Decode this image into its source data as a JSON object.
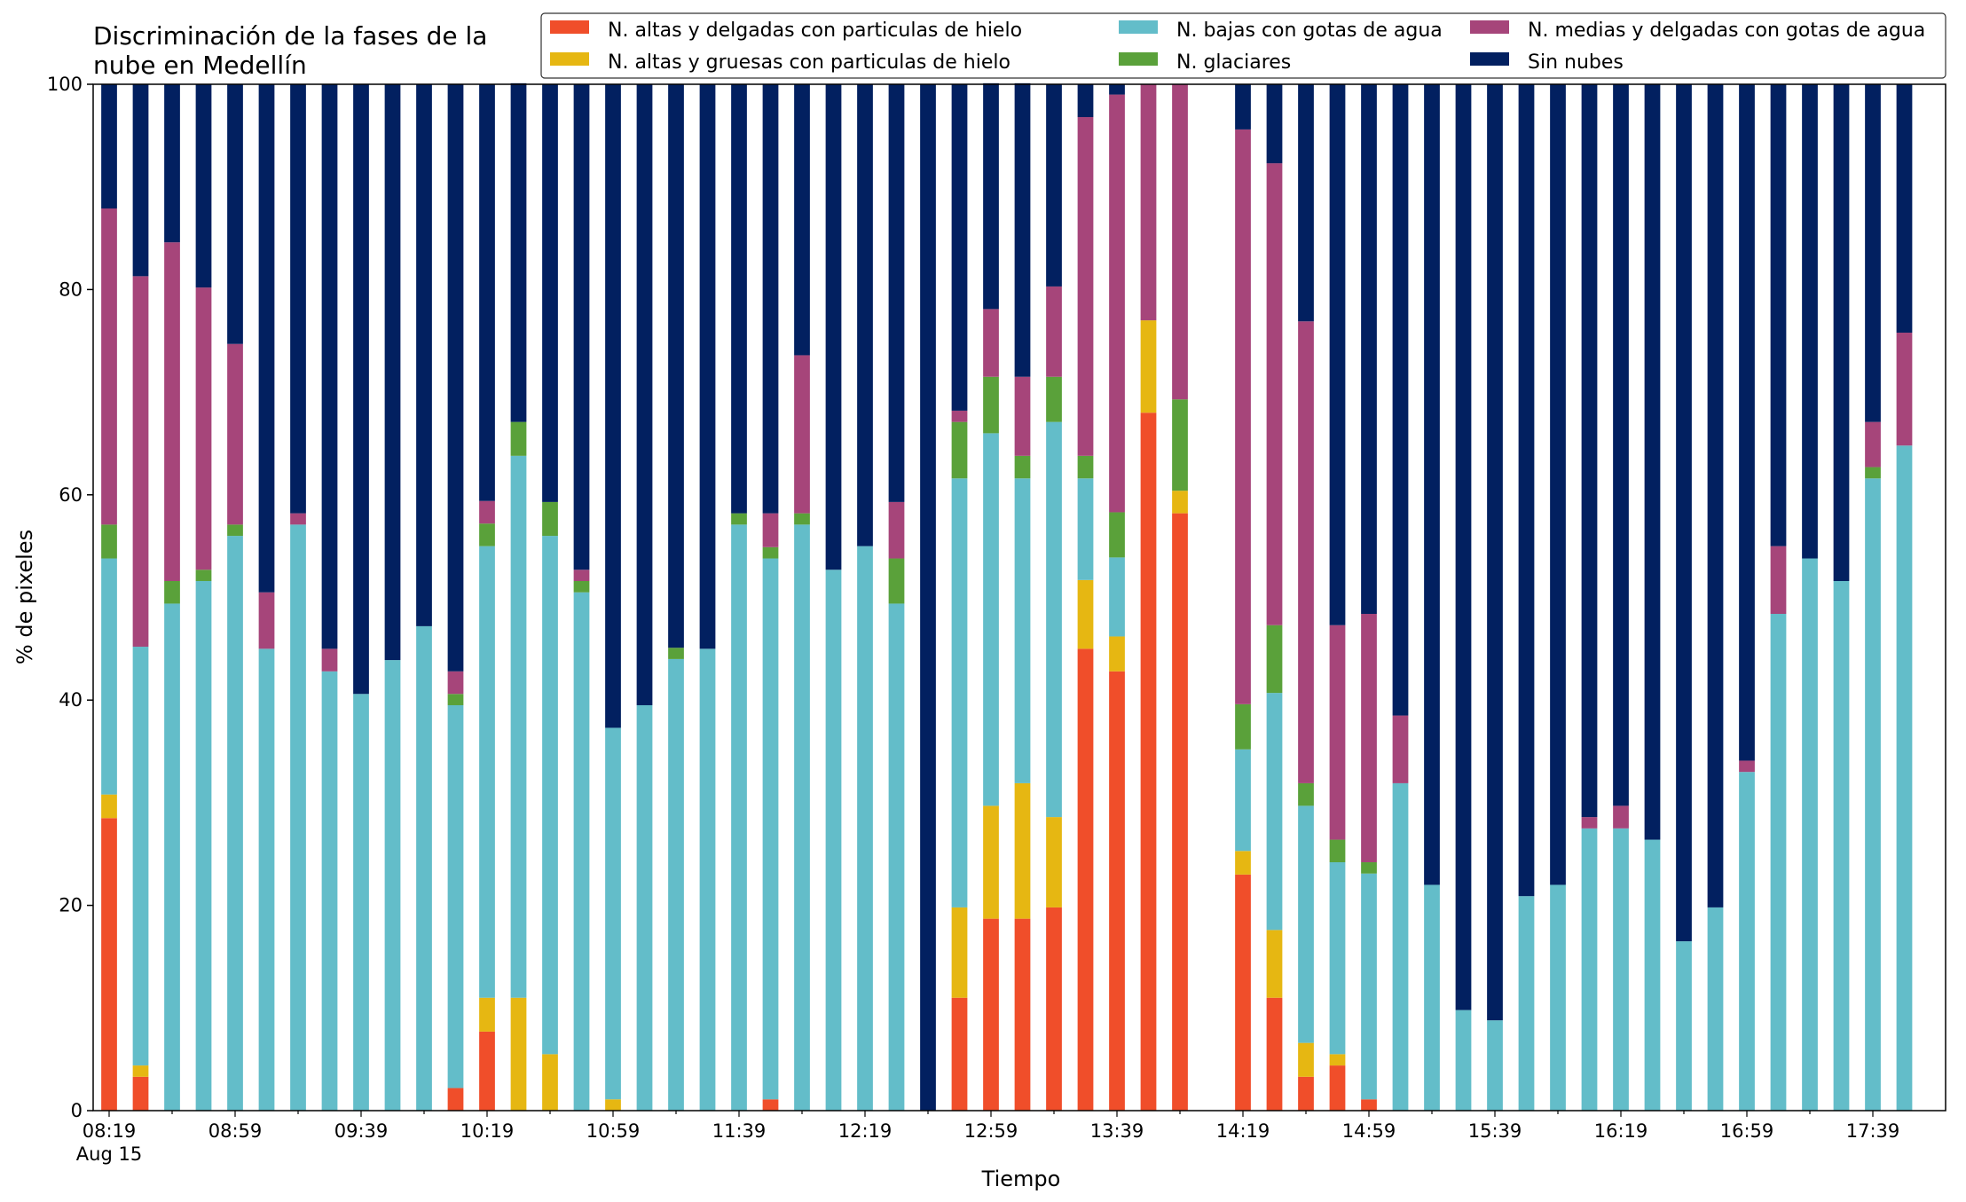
{
  "chart_data": {
    "type": "bar",
    "stacked": true,
    "title": "Discriminación de la fases de la\nnube en Medellín",
    "xlabel": "Tiempo",
    "ylabel": "% de pixeles",
    "ylim": [
      0,
      100
    ],
    "yticks": [
      0,
      20,
      40,
      60,
      80,
      100
    ],
    "x_start": "08:19",
    "x_step_minutes": 10,
    "x_count": 58,
    "x_tick_labels": [
      "08:19",
      "08:59",
      "09:39",
      "10:19",
      "10:59",
      "11:39",
      "12:19",
      "12:59",
      "13:39",
      "14:19",
      "14:59",
      "15:39",
      "16:19",
      "16:59",
      "17:39"
    ],
    "x_date_label": "Aug 15",
    "legend_position": "top-right",
    "series": [
      {
        "name": "N. altas y delgadas con particulas de hielo",
        "color": "#f04e2a",
        "values": [
          28.5,
          3.3,
          0,
          0,
          0,
          0,
          0,
          0,
          0,
          0,
          0,
          2.2,
          7.7,
          0,
          0,
          0,
          0,
          0,
          0,
          0,
          0,
          1.1,
          0,
          0,
          0,
          0,
          0,
          11,
          18.7,
          18.7,
          19.8,
          45,
          42.8,
          68,
          58.2,
          null,
          23,
          11,
          3.3,
          4.4,
          1.1,
          0,
          0,
          0,
          0,
          0,
          0,
          0,
          0,
          0,
          0,
          0,
          0,
          0,
          0,
          0,
          0,
          0
        ]
      },
      {
        "name": "N. altas y gruesas con particulas de hielo",
        "color": "#e6b712",
        "values": [
          2.3,
          1.1,
          0,
          0,
          0,
          0,
          0,
          0,
          0,
          0,
          0,
          0,
          3.3,
          11,
          5.5,
          0,
          1.1,
          0,
          0,
          0,
          0,
          0,
          0,
          0,
          0,
          0,
          0,
          8.8,
          11,
          13.2,
          8.8,
          6.7,
          3.4,
          9,
          2.2,
          null,
          2.3,
          6.6,
          3.3,
          1.1,
          0,
          0,
          0,
          0,
          0,
          0,
          0,
          0,
          0,
          0,
          0,
          0,
          0,
          0,
          0,
          0,
          0,
          0
        ]
      },
      {
        "name": "N. bajas con gotas de agua",
        "color": "#63bdc9",
        "values": [
          23,
          40.8,
          49.4,
          51.6,
          56,
          45,
          57.1,
          42.8,
          40.6,
          43.9,
          47.2,
          37.3,
          44,
          52.8,
          50.5,
          50.5,
          36.2,
          39.5,
          44,
          45,
          57.1,
          52.7,
          57.1,
          52.7,
          55,
          49.4,
          0,
          41.8,
          36.3,
          29.7,
          38.5,
          9.9,
          7.7,
          0,
          0,
          null,
          9.9,
          23.1,
          23.1,
          18.7,
          22,
          31.9,
          22,
          9.8,
          8.8,
          20.9,
          22,
          27.5,
          27.5,
          26.4,
          16.5,
          19.8,
          33,
          48.4,
          53.8,
          51.6,
          61.6,
          64.8
        ]
      },
      {
        "name": "N. glaciares",
        "color": "#5aa13a",
        "values": [
          3.3,
          0,
          2.2,
          1.1,
          1.1,
          0,
          0,
          0,
          0,
          0,
          0,
          1.1,
          2.2,
          3.3,
          3.3,
          1.1,
          0,
          0,
          1.1,
          0,
          1.1,
          1.1,
          1.1,
          0,
          0,
          4.4,
          0,
          5.5,
          5.5,
          2.2,
          4.4,
          2.2,
          4.4,
          0,
          8.9,
          null,
          4.4,
          6.6,
          2.2,
          2.2,
          1.1,
          0,
          0,
          0,
          0,
          0,
          0,
          0,
          0,
          0,
          0,
          0,
          0,
          0,
          0,
          0,
          1.1,
          0
        ]
      },
      {
        "name": "N. medias y delgadas con gotas de agua",
        "color": "#a6457a",
        "values": [
          30.8,
          36.1,
          33,
          27.5,
          17.6,
          5.5,
          1.1,
          2.2,
          0,
          0,
          0,
          2.2,
          2.2,
          0,
          0,
          1.1,
          0,
          0,
          0,
          0,
          0,
          3.3,
          15.4,
          0,
          0,
          5.5,
          0,
          1.1,
          6.6,
          7.7,
          8.8,
          33,
          40.7,
          23,
          30.7,
          null,
          56,
          45,
          45,
          20.9,
          24.2,
          6.6,
          0,
          0,
          0,
          0,
          0,
          1.1,
          2.2,
          0,
          0,
          0,
          1.1,
          6.6,
          0,
          0,
          4.4,
          11
        ]
      },
      {
        "name": "Sin nubes",
        "color": "#022060",
        "values": [
          12.1,
          18.7,
          15.4,
          19.8,
          25.3,
          49.5,
          41.8,
          55,
          59.4,
          56.1,
          52.8,
          57.2,
          40.6,
          33,
          40.7,
          47.3,
          62.7,
          60.5,
          54.9,
          55,
          41.8,
          41.8,
          26.4,
          47.3,
          45,
          40.7,
          100,
          31.8,
          22,
          28.6,
          19.7,
          3.2,
          1,
          0,
          0,
          null,
          4.4,
          7.7,
          23.1,
          52.7,
          51.6,
          61.5,
          78,
          90.2,
          91.2,
          79.1,
          78,
          71.4,
          70.3,
          73.6,
          83.5,
          80.2,
          65.9,
          45,
          46.2,
          48.4,
          32.9,
          24.2
        ]
      }
    ]
  }
}
